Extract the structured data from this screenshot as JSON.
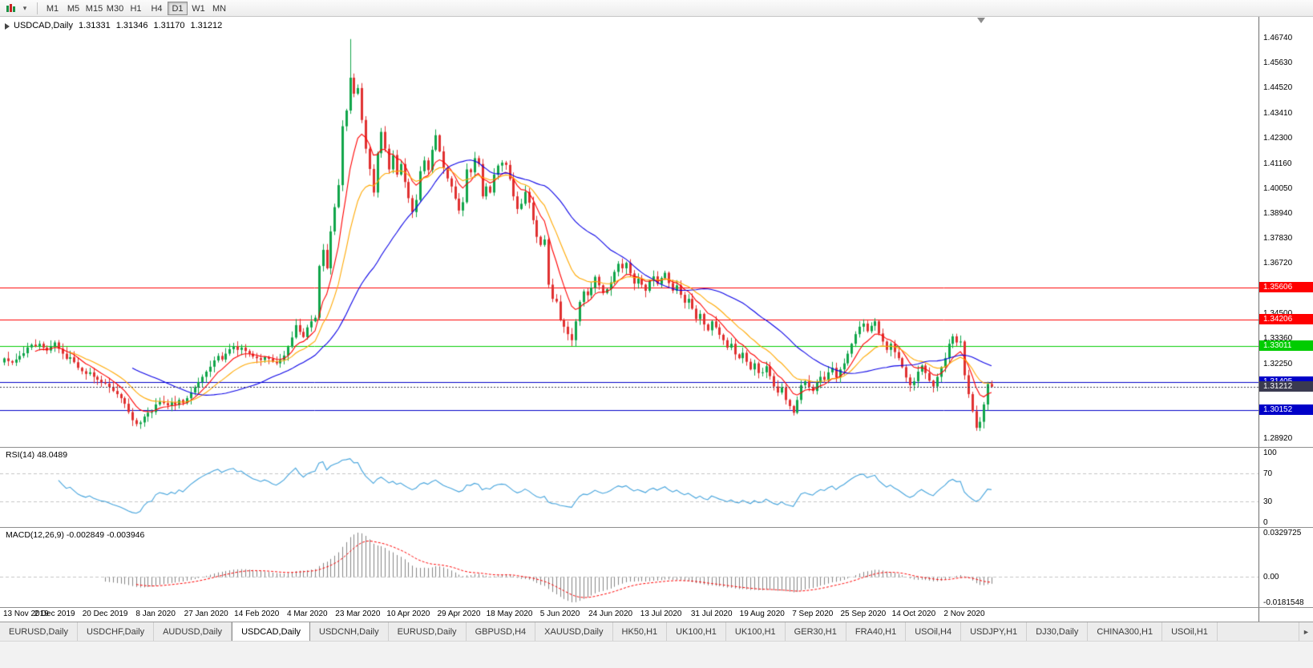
{
  "toolbar": {
    "chart_type_icon": "candlestick-chart-icon",
    "dropdown_glyph": "▾",
    "timeframes": [
      "M1",
      "M5",
      "M15",
      "M30",
      "H1",
      "H4",
      "D1",
      "W1",
      "MN"
    ],
    "active_timeframe": "D1"
  },
  "chart_header": {
    "symbol_title": "USDCAD,Daily",
    "open": "1.31331",
    "high": "1.31346",
    "low": "1.31170",
    "close": "1.31212"
  },
  "price_axis": {
    "ticks": [
      "1.46740",
      "1.45630",
      "1.44520",
      "1.43410",
      "1.42300",
      "1.41160",
      "1.40050",
      "1.38940",
      "1.37830",
      "1.36720",
      "1.34500",
      "1.33360",
      "1.32250",
      "1.28920"
    ],
    "badges": [
      {
        "value": "1.35606",
        "price": 1.35606,
        "color": "#ff0000"
      },
      {
        "value": "1.34206",
        "price": 1.34206,
        "color": "#ff0000"
      },
      {
        "value": "1.33011",
        "price": 1.33011,
        "color": "#00cc00"
      },
      {
        "value": "1.31405",
        "price": 1.31405,
        "color": "#0000c8"
      },
      {
        "value": "1.31212",
        "price": 1.31212,
        "color": "#3a3a50"
      },
      {
        "value": "1.30152",
        "price": 1.30152,
        "color": "#0000c8"
      }
    ]
  },
  "chart_data": {
    "type": "candlestick",
    "symbol": "USDCAD",
    "period": "Daily",
    "ylim": [
      1.2853,
      1.4767
    ],
    "x_labels": [
      "13 Nov 2019",
      "2 Dec 2019",
      "20 Dec 2019",
      "8 Jan 2020",
      "27 Jan 2020",
      "14 Feb 2020",
      "4 Mar 2020",
      "23 Mar 2020",
      "10 Apr 2020",
      "29 Apr 2020",
      "18 May 2020",
      "5 Jun 2020",
      "24 Jun 2020",
      "13 Jul 2020",
      "31 Jul 2020",
      "19 Aug 2020",
      "7 Sep 2020",
      "25 Sep 2020",
      "14 Oct 2020",
      "2 Nov 2020"
    ],
    "bars_per_label": 13,
    "closes": [
      1.3247,
      1.3235,
      1.3228,
      1.3242,
      1.3258,
      1.327,
      1.3296,
      1.3308,
      1.3301,
      1.3312,
      1.3295,
      1.3282,
      1.33,
      1.3318,
      1.329,
      1.3268,
      1.3245,
      1.3252,
      1.323,
      1.3205,
      1.319,
      1.3178,
      1.3185,
      1.3165,
      1.3152,
      1.314,
      1.3135,
      1.312,
      1.3102,
      1.3088,
      1.307,
      1.3045,
      1.3008,
      1.2972,
      1.2955,
      1.2962,
      1.2988,
      1.3005,
      1.3008,
      1.3042,
      1.3055,
      1.3048,
      1.3038,
      1.3052,
      1.304,
      1.3062,
      1.3048,
      1.307,
      1.3095,
      1.3118,
      1.3142,
      1.3165,
      1.3188,
      1.321,
      1.3238,
      1.3258,
      1.3242,
      1.3268,
      1.3288,
      1.3302,
      1.3285,
      1.3295,
      1.328,
      1.3268,
      1.3255,
      1.3248,
      1.324,
      1.3252,
      1.3245,
      1.3232,
      1.3225,
      1.324,
      1.326,
      1.3298,
      1.334,
      1.3395,
      1.3365,
      1.3342,
      1.3385,
      1.3412,
      1.3428,
      1.3658,
      1.373,
      1.3648,
      1.3812,
      1.392,
      1.4018,
      1.428,
      1.435,
      1.4496,
      1.4425,
      1.445,
      1.4308,
      1.418,
      1.409,
      1.3985,
      1.416,
      1.4255,
      1.418,
      1.4088,
      1.4152,
      1.4065,
      1.4112,
      1.4032,
      1.396,
      1.3898,
      1.3952,
      1.408,
      1.4128,
      1.4085,
      1.4175,
      1.424,
      1.4168,
      1.4095,
      1.4048,
      1.4012,
      1.3958,
      1.3905,
      1.3942,
      1.4088,
      1.4075,
      1.4138,
      1.4112,
      1.3968,
      1.4012,
      1.3985,
      1.4065,
      1.4105,
      1.4118,
      1.4108,
      1.4045,
      1.3968,
      1.3912,
      1.3935,
      1.3988,
      1.394,
      1.3862,
      1.3788,
      1.3752,
      1.3776,
      1.3575,
      1.3512,
      1.35,
      1.342,
      1.3388,
      1.3355,
      1.3328,
      1.3412,
      1.3498,
      1.3545,
      1.3528,
      1.3562,
      1.361,
      1.3572,
      1.3538,
      1.3555,
      1.3585,
      1.3632,
      1.3668,
      1.3648,
      1.3672,
      1.3625,
      1.358,
      1.3602,
      1.3575,
      1.3548,
      1.3592,
      1.3612,
      1.3578,
      1.3605,
      1.3628,
      1.3582,
      1.3548,
      1.3572,
      1.353,
      1.3495,
      1.3512,
      1.3468,
      1.3422,
      1.3445,
      1.3398,
      1.3372,
      1.3412,
      1.3385,
      1.3352,
      1.3328,
      1.3295,
      1.3312,
      1.3265,
      1.3248,
      1.3272,
      1.3232,
      1.3198,
      1.3225,
      1.3182,
      1.3185,
      1.3212,
      1.3168,
      1.3122,
      1.3095,
      1.3118,
      1.3062,
      1.3035,
      1.3005,
      1.3062,
      1.3128,
      1.3145,
      1.312,
      1.3102,
      1.3138,
      1.3165,
      1.3152,
      1.3185,
      1.3205,
      1.3162,
      1.3198,
      1.3225,
      1.3268,
      1.3312,
      1.3355,
      1.3388,
      1.3402,
      1.3368,
      1.3392,
      1.3412,
      1.3358,
      1.3322,
      1.3285,
      1.3312,
      1.3275,
      1.3248,
      1.3208,
      1.3162,
      1.3128,
      1.3145,
      1.3188,
      1.3215,
      1.3182,
      1.3148,
      1.3122,
      1.3165,
      1.3208,
      1.3248,
      1.3312,
      1.3345,
      1.3318,
      1.3322,
      1.3172,
      1.3088,
      1.3012,
      1.2938,
      1.2965,
      1.3042,
      1.3133,
      1.3121
    ],
    "wick_overrides": [
      {
        "i": 89,
        "high": 1.4668
      },
      {
        "i": 250,
        "low": 1.2925
      }
    ],
    "up_color": "#10a54a",
    "down_color": "#e03030",
    "moving_averages": [
      {
        "period": 8,
        "method": "ema",
        "color": "#ff0000"
      },
      {
        "period": 17,
        "method": "ema",
        "color": "#ffa800"
      },
      {
        "period": 34,
        "method": "sma",
        "color": "#0a00e6"
      }
    ],
    "horizontal_lines": [
      {
        "price": 1.35606,
        "color": "#ff0000"
      },
      {
        "price": 1.34206,
        "color": "#ff0000"
      },
      {
        "price": 1.33011,
        "color": "#00cc00"
      },
      {
        "price": 1.31405,
        "color": "#0000c8"
      },
      {
        "price": 1.30152,
        "color": "#0000c8"
      }
    ],
    "current_price": {
      "value": 1.31212,
      "line_color": "#3a3a50"
    },
    "indicators": {
      "rsi": {
        "label": "RSI(14) 48.0489",
        "period": 14,
        "color": "#44a3dc",
        "levels": [
          100,
          70,
          30,
          0
        ],
        "axis_labels": [
          "100",
          "70",
          "30",
          "0"
        ]
      },
      "macd": {
        "label": "MACD(12,26,9) -0.002849 -0.003946",
        "fast": 12,
        "slow": 26,
        "signal": 9,
        "histogram_color": "#848484",
        "signal_color": "#ff0000",
        "axis_labels": [
          "0.0329725",
          "0.00",
          "-0.0181548"
        ]
      }
    }
  },
  "tabs": {
    "items": [
      {
        "label": "EURUSD,Daily",
        "active": false
      },
      {
        "label": "USDCHF,Daily",
        "active": false
      },
      {
        "label": "AUDUSD,Daily",
        "active": false
      },
      {
        "label": "USDCAD,Daily",
        "active": true
      },
      {
        "label": "USDCNH,Daily",
        "active": false
      },
      {
        "label": "EURUSD,Daily",
        "active": false
      },
      {
        "label": "GBPUSD,H4",
        "active": false
      },
      {
        "label": "XAUUSD,Daily",
        "active": false
      },
      {
        "label": "HK50,H1",
        "active": false
      },
      {
        "label": "UK100,H1",
        "active": false
      },
      {
        "label": "UK100,H1",
        "active": false
      },
      {
        "label": "GER30,H1",
        "active": false
      },
      {
        "label": "FRA40,H1",
        "active": false
      },
      {
        "label": "USOil,H4",
        "active": false
      },
      {
        "label": "USDJPY,H1",
        "active": false
      },
      {
        "label": "DJ30,Daily",
        "active": false
      },
      {
        "label": "CHINA300,H1",
        "active": false
      },
      {
        "label": "USOil,H1",
        "active": false
      }
    ],
    "scroll_right_glyph": "►"
  }
}
